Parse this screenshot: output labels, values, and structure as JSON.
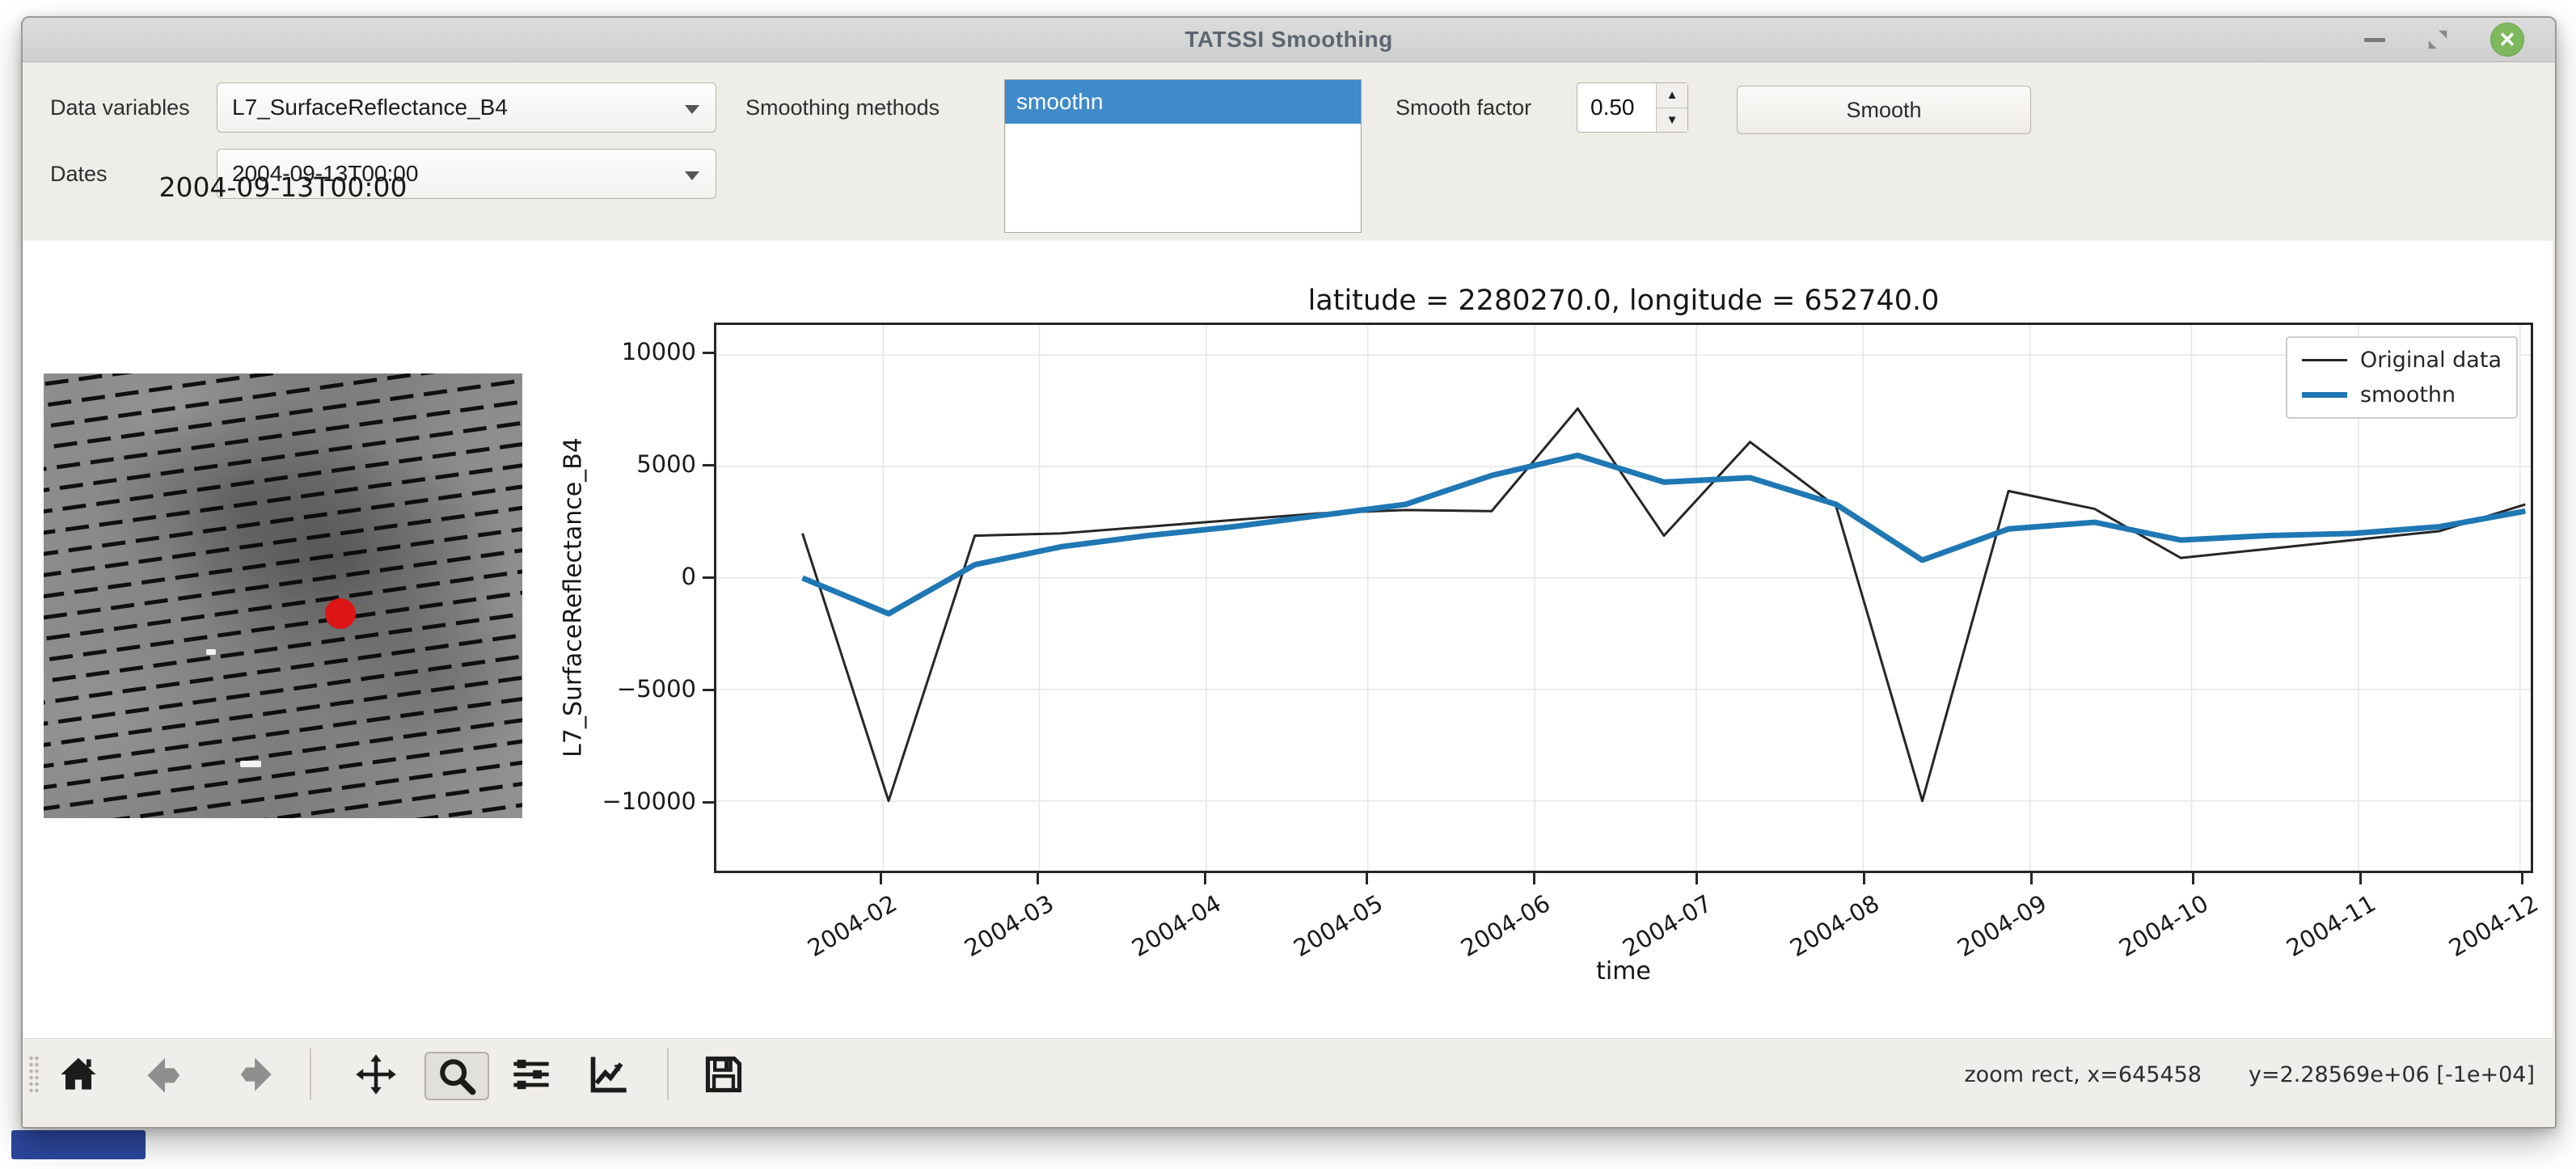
{
  "window": {
    "title": "TATSSI Smoothing",
    "controls_icons": [
      "minimize-icon",
      "restore-icon",
      "close-icon"
    ]
  },
  "controls": {
    "data_variables_label": "Data variables",
    "data_variables_value": "L7_SurfaceReflectance_B4",
    "dates_label": "Dates",
    "dates_value": "2004-09-13T00:00",
    "smoothing_methods_label": "Smoothing methods",
    "smoothing_methods_options": [
      "smoothn"
    ],
    "smoothing_methods_selected": "smoothn",
    "smooth_factor_label": "Smooth factor",
    "smooth_factor_value": "0.50",
    "smooth_button_label": "Smooth"
  },
  "thumbnail": {
    "title": "2004-09-13T00:00",
    "marker_color": "#dd1414",
    "marker_rel_x": 0.62,
    "marker_rel_y": 0.54
  },
  "chart_data": {
    "type": "line",
    "title": "latitude = 2280270.0, longitude = 652740.0",
    "xlabel": "time",
    "ylabel": "L7_SurfaceReflectance_B4",
    "grid": true,
    "legend_position": "upper right",
    "x_tick_labels": [
      "2004-02",
      "2004-03",
      "2004-04",
      "2004-05",
      "2004-06",
      "2004-07",
      "2004-08",
      "2004-09",
      "2004-10",
      "2004-11",
      "2004-12"
    ],
    "y_ticks": [
      10000,
      5000,
      0,
      -5000,
      -10000
    ],
    "x_epoch": "2004-01-01",
    "xlim_days": [
      0,
      337
    ],
    "ylim": [
      -13130,
      11350
    ],
    "x_dates": [
      "2004-01-17",
      "2004-02-02",
      "2004-02-18",
      "2004-03-05",
      "2004-03-21",
      "2004-04-06",
      "2004-04-22",
      "2004-05-08",
      "2004-05-24",
      "2004-06-09",
      "2004-06-25",
      "2004-07-11",
      "2004-07-27",
      "2004-08-12",
      "2004-08-28",
      "2004-09-13",
      "2004-09-29",
      "2004-10-15",
      "2004-10-31",
      "2004-11-16",
      "2004-12-02"
    ],
    "series": [
      {
        "name": "Original data",
        "color": "#262626",
        "width": 3,
        "values": [
          2000,
          -10000,
          1900,
          2000,
          2300,
          2600,
          2900,
          3050,
          3000,
          7600,
          1900,
          6100,
          3200,
          -10000,
          3900,
          3100,
          900,
          1300,
          1700,
          2100,
          3300
        ]
      },
      {
        "name": "smoothn",
        "color": "#1f77b4",
        "width": 7,
        "values": [
          0,
          -1600,
          600,
          1400,
          1900,
          2300,
          2800,
          3300,
          4600,
          5500,
          4300,
          4500,
          3300,
          800,
          2200,
          2500,
          1700,
          1900,
          2000,
          2300,
          3000
        ]
      }
    ]
  },
  "toolbar": {
    "icons": [
      "home-icon",
      "back-icon",
      "forward-icon",
      "pan-icon",
      "zoom-icon",
      "subplots-icon",
      "customize-icon",
      "save-icon"
    ],
    "active_tool": "zoom",
    "status_left": "zoom rect, x=645458",
    "status_right": "y=2.28569e+06  [-1e+04]"
  },
  "colors": {
    "selection_blue": "#3f8ac9",
    "smoothn_line": "#1f77b4",
    "original_line": "#262626",
    "close_button_green": "#7eb85c",
    "marker_red": "#dd1414",
    "taskbar_blue": "#2b479c",
    "window_bg": "#efede8"
  }
}
